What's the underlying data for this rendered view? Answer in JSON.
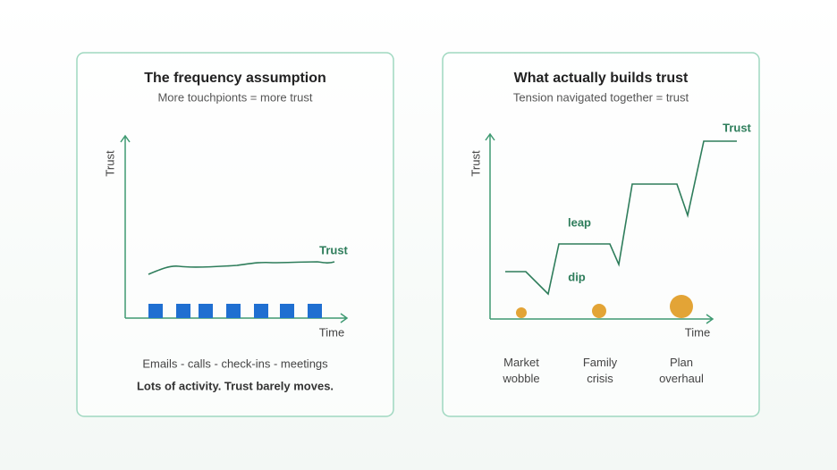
{
  "panels": [
    {
      "title": "The frequency assumption",
      "subtitle": "More touchpionts = more trust",
      "y_label": "Trust",
      "x_label": "Time",
      "line_label": "Trust",
      "caption": "Emails - calls - check-ins - meetings",
      "conclusion": "Lots of activity. Trust barely moves."
    },
    {
      "title": "What actually builds trust",
      "subtitle": "Tension navigated together = trust",
      "y_label": "Trust",
      "x_label": "Time",
      "line_label": "Trust",
      "annotations": [
        "leap",
        "dip"
      ],
      "events": [
        "Market wobble",
        "Family crisis",
        "Plan overhaul"
      ]
    }
  ]
}
